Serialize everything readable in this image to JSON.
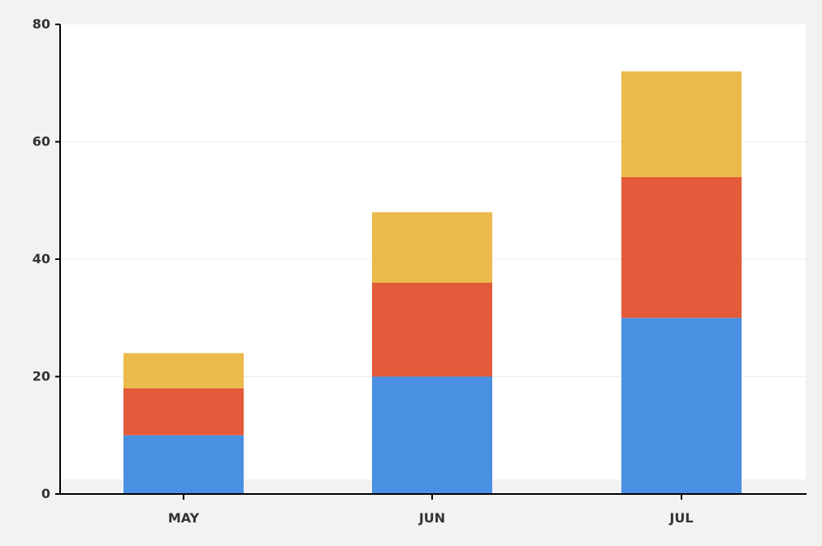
{
  "chart_data": {
    "type": "bar",
    "stacked": true,
    "categories": [
      "MAY",
      "JUN",
      "JUL"
    ],
    "series": [
      {
        "color": "#4a90e2",
        "values": [
          10,
          20,
          30
        ]
      },
      {
        "color": "#e35b3a",
        "values": [
          8,
          16,
          24
        ]
      },
      {
        "color": "#ecb94b",
        "values": [
          6,
          12,
          18
        ]
      }
    ],
    "title": "",
    "xlabel": "",
    "ylabel": "",
    "ylim": [
      0,
      80
    ],
    "yticks": [
      0,
      20,
      40,
      60,
      80
    ],
    "grid": true,
    "legend": "none"
  },
  "colors": {
    "page_background": "#f2f2f2",
    "plot_background": "#ffffff",
    "axis": "#000000",
    "gridline": "#eeeeee"
  }
}
